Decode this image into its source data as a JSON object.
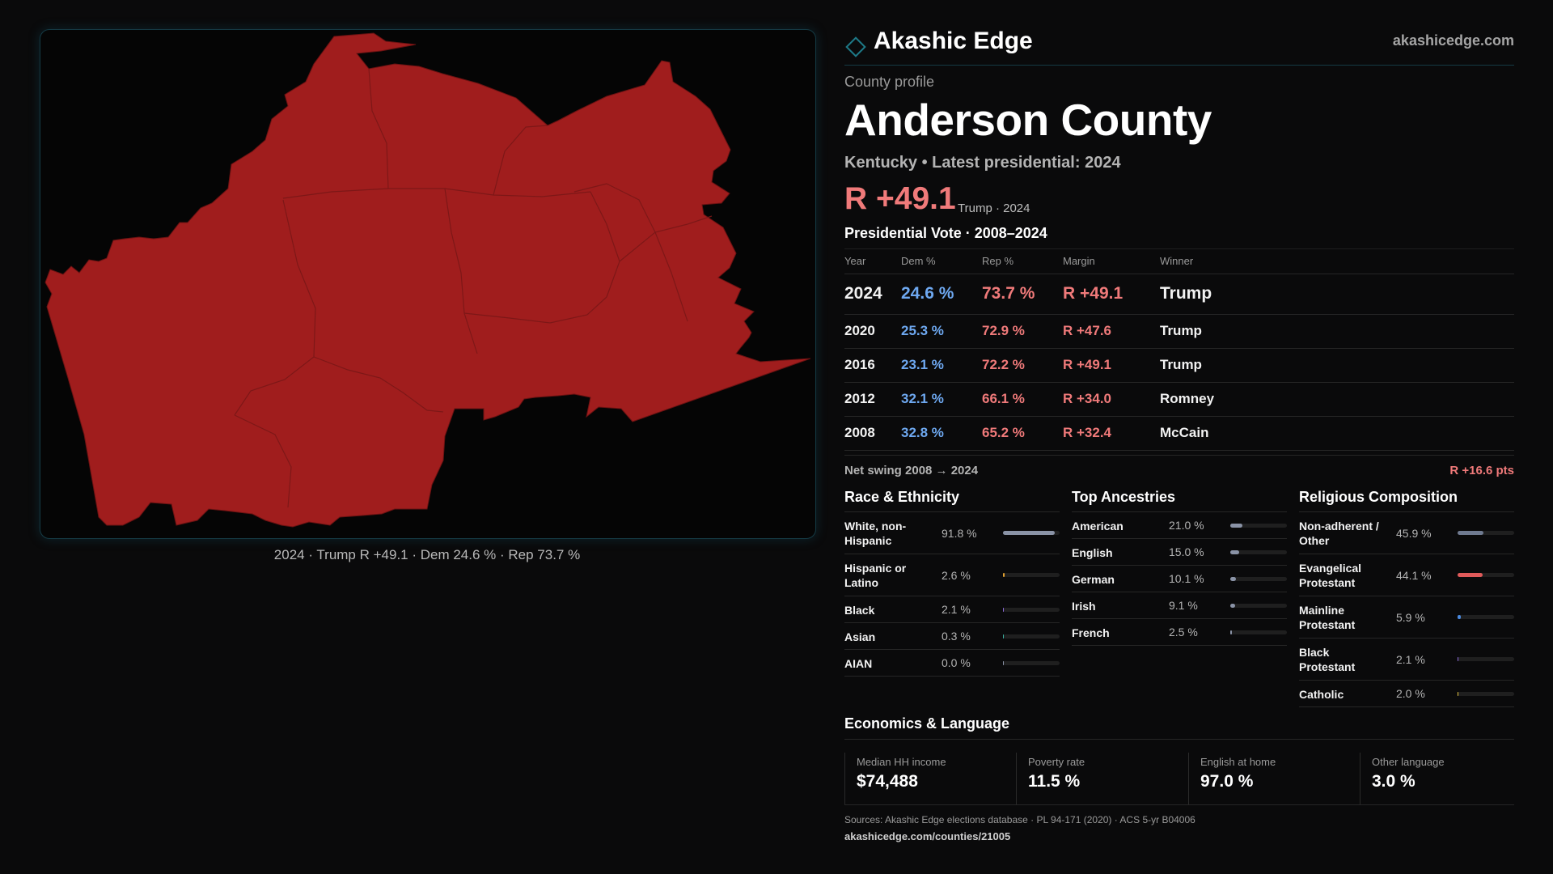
{
  "brand": {
    "name": "Akashic Edge",
    "url": "akashicedge.com"
  },
  "map": {
    "fill_color": "#a01d1d",
    "caption": "2024 · Trump R +49.1 · Dem 24.6 % · Rep 73.7 %"
  },
  "profile": {
    "label": "County profile",
    "county": "Anderson County",
    "subtitle": "Kentucky • Latest presidential: 2024",
    "margin": "R +49.1",
    "margin_note": "Trump · 2024"
  },
  "vote": {
    "title": "Presidential Vote · 2008–2024",
    "columns": [
      "Year",
      "Dem %",
      "Rep %",
      "Margin",
      "Winner"
    ],
    "rows": [
      {
        "year": "2024",
        "dem": "24.6 %",
        "rep": "73.7 %",
        "margin": "R +49.1",
        "winner": "Trump"
      },
      {
        "year": "2020",
        "dem": "25.3 %",
        "rep": "72.9 %",
        "margin": "R +47.6",
        "winner": "Trump"
      },
      {
        "year": "2016",
        "dem": "23.1 %",
        "rep": "72.2 %",
        "margin": "R +49.1",
        "winner": "Trump"
      },
      {
        "year": "2012",
        "dem": "32.1 %",
        "rep": "66.1 %",
        "margin": "R +34.0",
        "winner": "Romney"
      },
      {
        "year": "2008",
        "dem": "32.8 %",
        "rep": "65.2 %",
        "margin": "R +32.4",
        "winner": "McCain"
      }
    ],
    "swing_label": "Net swing 2008 → 2024",
    "swing_value": "R +16.6 pts"
  },
  "race": {
    "title": "Race & Ethnicity",
    "items": [
      {
        "label": "White, non-Hispanic",
        "value": "91.8 %",
        "share": 0.918,
        "color": "#8a93a6"
      },
      {
        "label": "Hispanic or Latino",
        "value": "2.6 %",
        "share": 0.026,
        "color": "#e0a030"
      },
      {
        "label": "Black",
        "value": "2.1 %",
        "share": 0.021,
        "color": "#8a6ad8"
      },
      {
        "label": "Asian",
        "value": "0.3 %",
        "share": 0.003,
        "color": "#3ab0a0"
      },
      {
        "label": "AIAN",
        "value": "0.0 %",
        "share": 0.0,
        "color": "#8a93a6"
      }
    ]
  },
  "ancestry": {
    "title": "Top Ancestries",
    "items": [
      {
        "label": "American",
        "value": "21.0 %",
        "share": 0.21,
        "color": "#8a93a6"
      },
      {
        "label": "English",
        "value": "15.0 %",
        "share": 0.15,
        "color": "#8a93a6"
      },
      {
        "label": "German",
        "value": "10.1 %",
        "share": 0.101,
        "color": "#8a93a6"
      },
      {
        "label": "Irish",
        "value": "9.1 %",
        "share": 0.091,
        "color": "#8a93a6"
      },
      {
        "label": "French",
        "value": "2.5 %",
        "share": 0.025,
        "color": "#8a93a6"
      }
    ]
  },
  "religion": {
    "title": "Religious Composition",
    "items": [
      {
        "label": "Non-adherent / Other",
        "value": "45.9 %",
        "share": 0.459,
        "color": "#6f7a90"
      },
      {
        "label": "Evangelical Protestant",
        "value": "44.1 %",
        "share": 0.441,
        "color": "#e05a5a"
      },
      {
        "label": "Mainline Protestant",
        "value": "5.9 %",
        "share": 0.059,
        "color": "#4a8ae0"
      },
      {
        "label": "Black Protestant",
        "value": "2.1 %",
        "share": 0.021,
        "color": "#8a6ad8"
      },
      {
        "label": "Catholic",
        "value": "2.0 %",
        "share": 0.02,
        "color": "#e0c040"
      }
    ]
  },
  "economics": {
    "title": "Economics & Language",
    "items": [
      {
        "label": "Median HH income",
        "value": "$74,488"
      },
      {
        "label": "Poverty rate",
        "value": "11.5 %"
      },
      {
        "label": "English at home",
        "value": "97.0 %"
      },
      {
        "label": "Other language",
        "value": "3.0 %"
      }
    ]
  },
  "footer": {
    "sources": "Sources: Akashic Edge elections database · PL 94-171 (2020) · ACS 5-yr B04006",
    "url": "akashicedge.com/counties/21005"
  }
}
